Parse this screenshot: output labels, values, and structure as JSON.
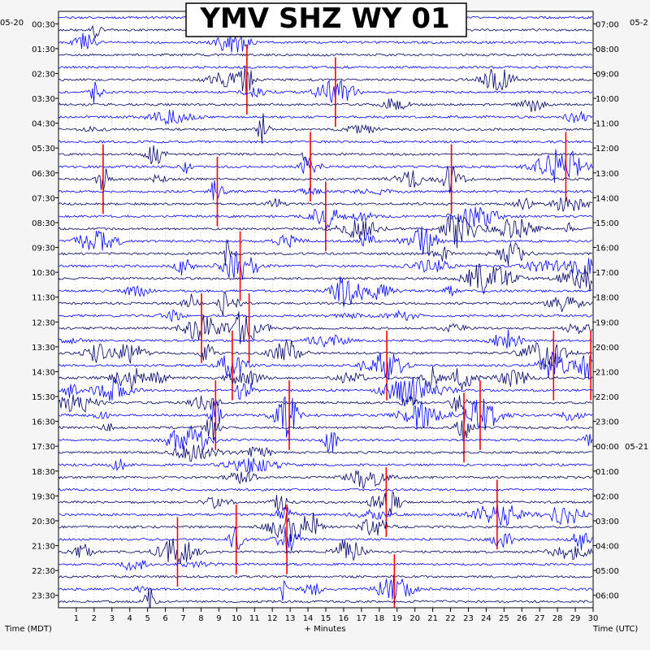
{
  "chart_data": {
    "type": "helicorder",
    "title": "YMV SHZ WY 01",
    "left_date": "05-20",
    "right_date_start": "05-2",
    "right_date_next": "05-21",
    "xlabel": "+ Minutes",
    "left_axis_label": "Time (MDT)",
    "right_axis_label": "Time (UTC)",
    "x_ticks": [
      "1",
      "2",
      "3",
      "4",
      "5",
      "6",
      "7",
      "8",
      "9",
      "10",
      "11",
      "12",
      "13",
      "14",
      "15",
      "16",
      "17",
      "18",
      "19",
      "20",
      "21",
      "22",
      "23",
      "24",
      "25",
      "26",
      "27",
      "28",
      "29",
      "30"
    ],
    "xlim": [
      0,
      30
    ],
    "left_times": [
      "00:30",
      "01:30",
      "02:30",
      "03:30",
      "04:30",
      "05:30",
      "06:30",
      "07:30",
      "08:30",
      "09:30",
      "10:30",
      "11:30",
      "12:30",
      "13:30",
      "14:30",
      "15:30",
      "16:30",
      "17:30",
      "18:30",
      "19:30",
      "20:30",
      "21:30",
      "22:30",
      "23:30"
    ],
    "right_times": [
      "07:00",
      "08:00",
      "09:00",
      "10:00",
      "11:00",
      "12:00",
      "13:00",
      "14:00",
      "15:00",
      "16:00",
      "17:00",
      "18:00",
      "19:00",
      "20:00",
      "21:00",
      "22:00",
      "23:00",
      "00:00",
      "01:00",
      "02:00",
      "03:00",
      "04:00",
      "05:00",
      "06:00"
    ],
    "trace_rows": 48,
    "trace_colors": [
      "#0000ff",
      "#000066"
    ],
    "clip_color": "#ff0000",
    "grid": true
  }
}
